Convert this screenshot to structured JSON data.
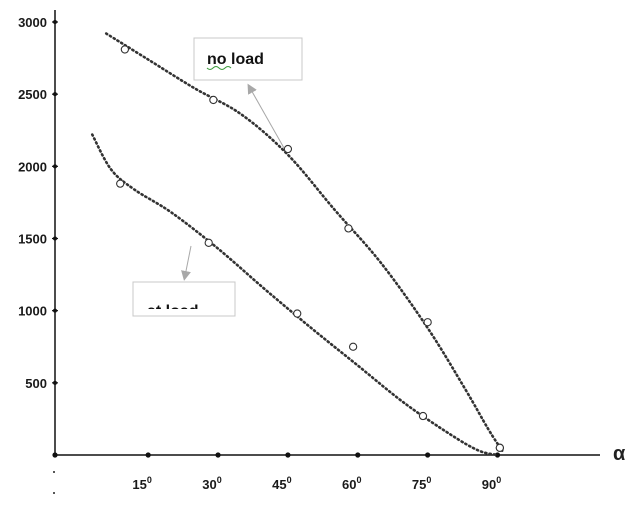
{
  "chart_data": {
    "type": "scatter",
    "title": "",
    "xlabel": "α",
    "ylabel": "",
    "xlim": [
      -5,
      112
    ],
    "ylim": [
      0,
      3000
    ],
    "x_tick_values": [
      15,
      30,
      45,
      60,
      75,
      90
    ],
    "x_tick_labels": [
      {
        "num": "15",
        "sup": "0"
      },
      {
        "num": "30",
        "sup": "0"
      },
      {
        "num": "45",
        "sup": "0"
      },
      {
        "num": "60",
        "sup": "0"
      },
      {
        "num": "75",
        "sup": "0"
      },
      {
        "num": "90",
        "sup": "0"
      }
    ],
    "y_ticks": [
      500,
      1000,
      1500,
      2000,
      2500,
      3000
    ],
    "y_tick_labels": [
      "500",
      "1000",
      "1500",
      "2000",
      "2500",
      "3000"
    ],
    "grid": false,
    "series": [
      {
        "name": "no load",
        "points": [
          {
            "x": 10,
            "y": 2810
          },
          {
            "x": 29,
            "y": 2460
          },
          {
            "x": 45,
            "y": 2120
          },
          {
            "x": 58,
            "y": 1570
          },
          {
            "x": 75,
            "y": 920
          },
          {
            "x": 90.5,
            "y": 50
          }
        ],
        "trend": [
          {
            "x": 6,
            "y": 2920
          },
          {
            "x": 15,
            "y": 2740
          },
          {
            "x": 25,
            "y": 2540
          },
          {
            "x": 35,
            "y": 2360
          },
          {
            "x": 45,
            "y": 2080
          },
          {
            "x": 55,
            "y": 1700
          },
          {
            "x": 65,
            "y": 1330
          },
          {
            "x": 75,
            "y": 880
          },
          {
            "x": 83,
            "y": 460
          },
          {
            "x": 88,
            "y": 180
          },
          {
            "x": 91,
            "y": 30
          }
        ]
      },
      {
        "name": "at load",
        "points": [
          {
            "x": 9,
            "y": 1880
          },
          {
            "x": 28,
            "y": 1470
          },
          {
            "x": 47,
            "y": 980
          },
          {
            "x": 59,
            "y": 750
          },
          {
            "x": 74,
            "y": 270
          },
          {
            "x": 90.5,
            "y": 50
          }
        ],
        "trend": [
          {
            "x": 3,
            "y": 2220
          },
          {
            "x": 7,
            "y": 1980
          },
          {
            "x": 12,
            "y": 1840
          },
          {
            "x": 20,
            "y": 1680
          },
          {
            "x": 30,
            "y": 1430
          },
          {
            "x": 40,
            "y": 1150
          },
          {
            "x": 50,
            "y": 880
          },
          {
            "x": 60,
            "y": 620
          },
          {
            "x": 70,
            "y": 360
          },
          {
            "x": 80,
            "y": 140
          },
          {
            "x": 86,
            "y": 30
          },
          {
            "x": 90,
            "y": 0
          }
        ]
      }
    ]
  },
  "legend": {
    "no_load": "no load",
    "at_load": "at load"
  },
  "colors": {
    "axis": "#111111",
    "series_line": "#333333",
    "marker": "#333333",
    "arrow": "#a8a8a8"
  }
}
